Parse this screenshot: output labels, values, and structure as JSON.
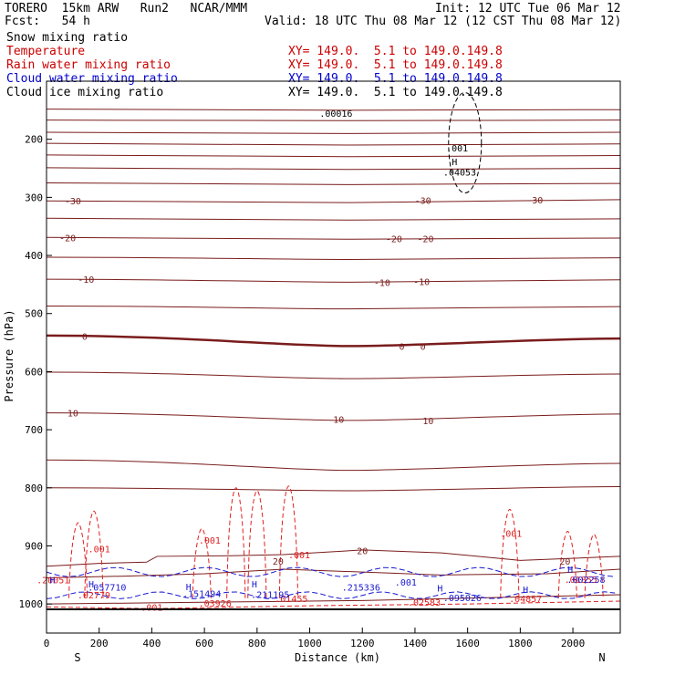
{
  "header": {
    "title_left": "TORERO  15km ARW   Run2   NCAR/MMM",
    "init": "Init: 12 UTC Tue 06 Mar 12",
    "fcst": "Fcst:   54 h",
    "valid": "Valid: 18 UTC Thu 08 Mar 12 (12 CST Thu 08 Mar 12)"
  },
  "legend": [
    {
      "name": "Snow mixing ratio",
      "xy": "",
      "color": "#000000"
    },
    {
      "name": "Temperature",
      "xy": "XY= 149.0.  5.1 to 149.0.149.8",
      "color": "#cc0000"
    },
    {
      "name": "Rain water mixing ratio",
      "xy": "XY= 149.0.  5.1 to 149.0.149.8",
      "color": "#cc0000"
    },
    {
      "name": "Cloud water mixing ratio",
      "xy": "XY= 149.0.  5.1 to 149.0.149.8",
      "color": "#0000cc"
    },
    {
      "name": "Cloud ice mixing ratio",
      "xy": "XY= 149.0.  5.1 to 149.0.149.8",
      "color": "#000000"
    }
  ],
  "colors": {
    "temperature": "#7a1c1c",
    "rain": "#e02020",
    "cloud_water": "#1a1ad0",
    "ice_snow": "#000000"
  },
  "chart_data": {
    "type": "line",
    "title": "",
    "xlabel": "Distance (km)",
    "ylabel": "Pressure (hPa)",
    "xlim": [
      0,
      2180
    ],
    "ylim": [
      100,
      1050
    ],
    "xticks": [
      0,
      200,
      400,
      600,
      800,
      1000,
      1200,
      1400,
      1600,
      1800,
      2000
    ],
    "yticks": [
      200,
      300,
      400,
      500,
      600,
      700,
      800,
      900,
      1000
    ],
    "x_end_labels": {
      "left": "S",
      "right": "N"
    },
    "temperature_contours": [
      {
        "label": "",
        "p": [
          148,
          150,
          149
        ]
      },
      {
        "label": "",
        "p": [
          167,
          168,
          167
        ]
      },
      {
        "label": "",
        "p": [
          188,
          190,
          188
        ]
      },
      {
        "label": "",
        "p": [
          207,
          210,
          208
        ]
      },
      {
        "label": "",
        "p": [
          227,
          230,
          228
        ]
      },
      {
        "label": "",
        "p": [
          249,
          252,
          250
        ]
      },
      {
        "label": "",
        "p": [
          275,
          278,
          276
        ]
      },
      {
        "label": "-30",
        "p": [
          306,
          309,
          304
        ]
      },
      {
        "label": "",
        "p": [
          336,
          339,
          337
        ]
      },
      {
        "label": "-20",
        "p": [
          369,
          372,
          370
        ]
      },
      {
        "label": "",
        "p": [
          403,
          407,
          404
        ]
      },
      {
        "label": "-10",
        "p": [
          441,
          446,
          442
        ]
      },
      {
        "label": "",
        "p": [
          487,
          492,
          488
        ]
      },
      {
        "label": "0",
        "p": [
          538,
          556,
          543
        ]
      },
      {
        "label": "",
        "p": [
          601,
          612,
          604
        ]
      },
      {
        "label": "10",
        "p": [
          671,
          684,
          673
        ]
      },
      {
        "label": "",
        "p": [
          752,
          770,
          758
        ]
      },
      {
        "label": "",
        "p": [
          800,
          805,
          798
        ]
      }
    ],
    "temperature_labels": [
      {
        "x": 100,
        "p": 306,
        "text": "-30"
      },
      {
        "x": 1430,
        "p": 305,
        "text": "-30"
      },
      {
        "x": 1855,
        "p": 304,
        "text": "-30"
      },
      {
        "x": 80,
        "p": 369,
        "text": "-20"
      },
      {
        "x": 1320,
        "p": 371,
        "text": "-20"
      },
      {
        "x": 1440,
        "p": 371,
        "text": "-20"
      },
      {
        "x": 150,
        "p": 441,
        "text": "-10"
      },
      {
        "x": 1275,
        "p": 446,
        "text": "-10"
      },
      {
        "x": 1425,
        "p": 445,
        "text": "-10"
      },
      {
        "x": 145,
        "p": 539,
        "text": "0"
      },
      {
        "x": 1350,
        "p": 556,
        "text": "0"
      },
      {
        "x": 1430,
        "p": 556,
        "text": "0"
      },
      {
        "x": 100,
        "p": 671,
        "text": "10"
      },
      {
        "x": 1110,
        "p": 682,
        "text": "10"
      },
      {
        "x": 1450,
        "p": 684,
        "text": "10"
      },
      {
        "x": 880,
        "p": 926,
        "text": "20"
      },
      {
        "x": 1200,
        "p": 908,
        "text": "20"
      },
      {
        "x": 1970,
        "p": 926,
        "text": "20"
      }
    ],
    "ice_labels": [
      {
        "x": 1100,
        "p": 155,
        "text": ".00016"
      },
      {
        "x": 1560,
        "p": 215,
        "text": ".001"
      },
      {
        "x": 1550,
        "p": 238,
        "text": "H"
      },
      {
        "x": 1570,
        "p": 256,
        "text": ".04053"
      }
    ],
    "rain_labels": [
      {
        "x": 200,
        "p": 905,
        "text": ".001"
      },
      {
        "x": 620,
        "p": 890,
        "text": ".001"
      },
      {
        "x": 960,
        "p": 915,
        "text": ".001"
      },
      {
        "x": 1765,
        "p": 878,
        "text": ".001"
      },
      {
        "x": 25,
        "p": 958,
        "text": ".20051"
      },
      {
        "x": 180,
        "p": 984,
        "text": ".02779"
      },
      {
        "x": 640,
        "p": 998,
        "text": ".03926"
      },
      {
        "x": 930,
        "p": 990,
        "text": ".01455"
      },
      {
        "x": 1435,
        "p": 997,
        "text": ".02583"
      },
      {
        "x": 1820,
        "p": 990,
        "text": ".04857"
      },
      {
        "x": 2030,
        "p": 957,
        "text": ".01855"
      },
      {
        "x": 400,
        "p": 1005,
        "text": ".001"
      }
    ],
    "cloud_labels": [
      {
        "x": 22,
        "p": 958,
        "text": "H"
      },
      {
        "x": 230,
        "p": 971,
        "text": ".057710"
      },
      {
        "x": 590,
        "p": 982,
        "text": ".151494"
      },
      {
        "x": 850,
        "p": 983,
        "text": ".211195"
      },
      {
        "x": 1195,
        "p": 971,
        "text": ".215336"
      },
      {
        "x": 1820,
        "p": 975,
        "text": "H"
      },
      {
        "x": 1580,
        "p": 989,
        "text": ".095026"
      },
      {
        "x": 2050,
        "p": 957,
        "text": ".002258"
      },
      {
        "x": 1365,
        "p": 962,
        "text": ".001"
      },
      {
        "x": 170,
        "p": 965,
        "text": "H"
      },
      {
        "x": 540,
        "p": 970,
        "text": "H"
      },
      {
        "x": 790,
        "p": 965,
        "text": "H"
      },
      {
        "x": 1495,
        "p": 972,
        "text": "H"
      },
      {
        "x": 1990,
        "p": 940,
        "text": "H"
      }
    ]
  }
}
